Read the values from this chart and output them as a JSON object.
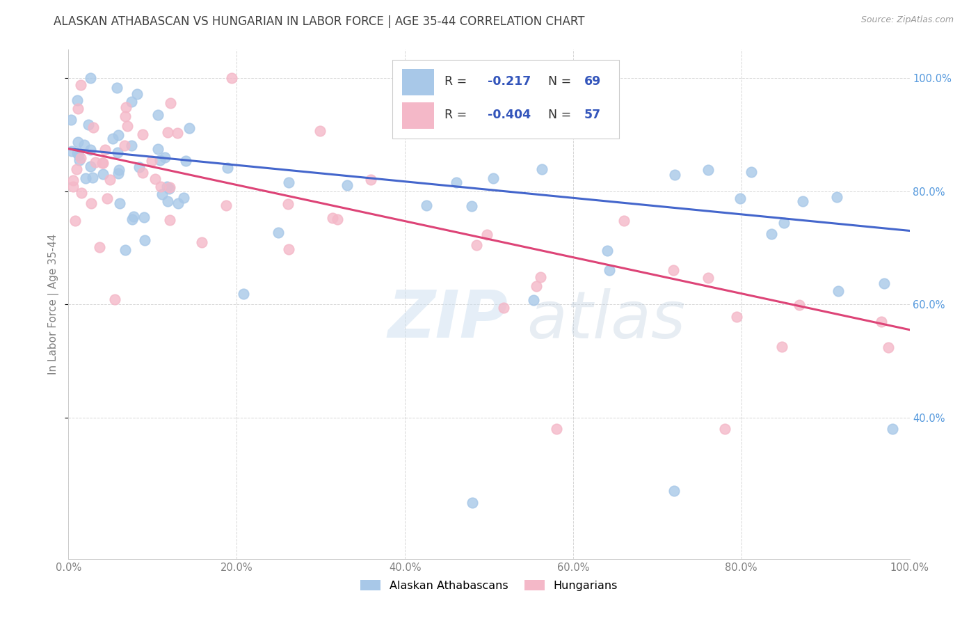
{
  "title": "ALASKAN ATHABASCAN VS HUNGARIAN IN LABOR FORCE | AGE 35-44 CORRELATION CHART",
  "source": "Source: ZipAtlas.com",
  "ylabel": "In Labor Force | Age 35-44",
  "x_min": 0.0,
  "x_max": 1.0,
  "y_min": 0.15,
  "y_max": 1.05,
  "x_tick_labels": [
    "0.0%",
    "20.0%",
    "40.0%",
    "60.0%",
    "80.0%",
    "100.0%"
  ],
  "x_tick_vals": [
    0.0,
    0.2,
    0.4,
    0.6,
    0.8,
    1.0
  ],
  "right_y_tick_labels": [
    "100.0%",
    "80.0%",
    "60.0%",
    "40.0%"
  ],
  "right_y_tick_vals": [
    1.0,
    0.8,
    0.6,
    0.4
  ],
  "blue_color": "#a8c8e8",
  "pink_color": "#f4b8c8",
  "blue_line_color": "#4466cc",
  "pink_line_color": "#dd4477",
  "blue_R": -0.217,
  "blue_N": 69,
  "pink_R": -0.404,
  "pink_N": 57,
  "legend_label_blue": "Alaskan Athabascans",
  "legend_label_pink": "Hungarians",
  "watermark_zip": "ZIP",
  "watermark_atlas": "atlas",
  "background_color": "#ffffff",
  "grid_color": "#cccccc",
  "title_color": "#404040",
  "axis_label_color": "#808080",
  "right_axis_color": "#5599dd",
  "source_color": "#999999",
  "legend_text_color": "#3355bb",
  "legend_r_label_color": "#333333",
  "blue_line_intercept": 0.875,
  "blue_line_slope": -0.145,
  "pink_line_intercept": 0.875,
  "pink_line_slope": -0.32
}
